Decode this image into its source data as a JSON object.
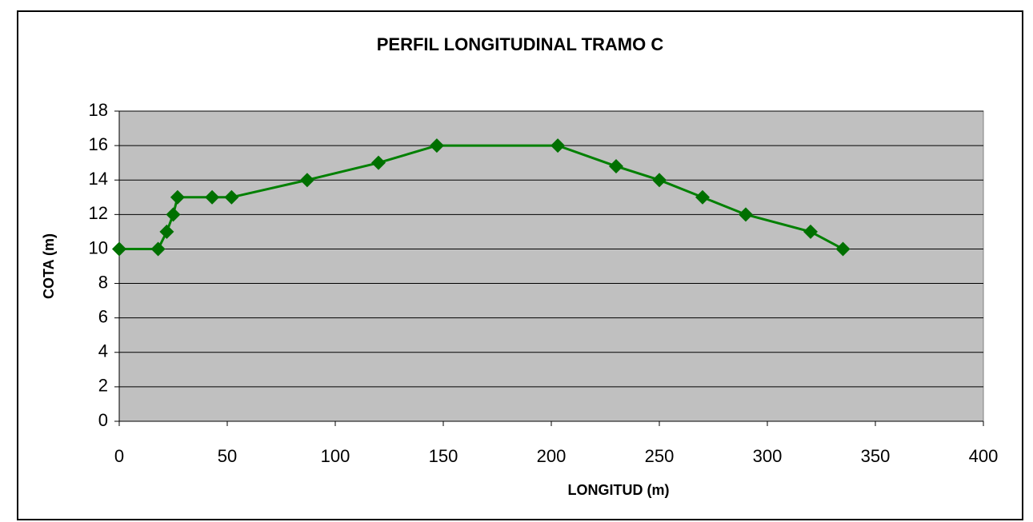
{
  "chart_data": {
    "type": "line",
    "title": "PERFIL LONGITUDINAL TRAMO C",
    "x_label": "LONGITUD (m)",
    "y_label": "COTA (m)",
    "x": [
      0,
      18,
      22,
      25,
      27,
      43,
      52,
      87,
      120,
      147,
      203,
      230,
      250,
      270,
      290,
      320,
      335
    ],
    "series": [
      {
        "name": "Cota",
        "color": "#008000",
        "marker_color": "#007000",
        "values": [
          10,
          10,
          11,
          12,
          13,
          13,
          13,
          14,
          15,
          16,
          16,
          14.8,
          14,
          13,
          12,
          11,
          10
        ]
      }
    ],
    "xlim": [
      0,
      400
    ],
    "xticks": [
      0,
      50,
      100,
      150,
      200,
      250,
      300,
      350,
      400
    ],
    "ylim": [
      0,
      18
    ],
    "yticks": [
      0,
      2,
      4,
      6,
      8,
      10,
      12,
      14,
      16,
      18
    ],
    "grid": true,
    "plot_background": "#c0c0c0"
  }
}
